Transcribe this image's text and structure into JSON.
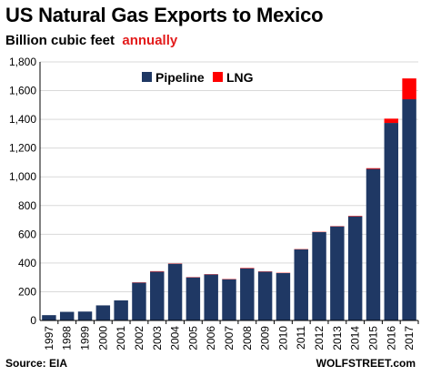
{
  "title": "US Natural Gas Exports to Mexico",
  "subtitle": "Billion cubic feet",
  "subtitle_highlight": "annually",
  "source": "Source: EIA",
  "credit": "WOLFSTREET.com",
  "colors": {
    "pipeline": "#1f3864",
    "lng": "#ff0000",
    "grid": "#d9d9d9",
    "highlight": "#e31b1b"
  },
  "chart_data": {
    "type": "bar",
    "stacked": true,
    "title": "US Natural Gas Exports to Mexico",
    "subtitle": "Billion cubic feet annually",
    "xlabel": "",
    "ylabel": "",
    "ylim": [
      0,
      1800
    ],
    "yticks": [
      0,
      200,
      400,
      600,
      800,
      1000,
      1200,
      1400,
      1600,
      1800
    ],
    "ytick_labels": [
      "0",
      "200",
      "400",
      "600",
      "800",
      "1,000",
      "1,200",
      "1,400",
      "1,600",
      "1,800"
    ],
    "grid": true,
    "legend_position": "top-center",
    "categories": [
      "1997",
      "1998",
      "1999",
      "2000",
      "2001",
      "2002",
      "2003",
      "2004",
      "2005",
      "2006",
      "2007",
      "2008",
      "2009",
      "2010",
      "2011",
      "2012",
      "2013",
      "2014",
      "2015",
      "2016",
      "2017"
    ],
    "series": [
      {
        "name": "Pipeline",
        "values": [
          37,
          60,
          62,
          105,
          140,
          263,
          340,
          395,
          300,
          320,
          287,
          363,
          340,
          330,
          495,
          615,
          655,
          725,
          1055,
          1375,
          1540
        ]
      },
      {
        "name": "LNG",
        "values": [
          0,
          0,
          0,
          0,
          0,
          2,
          3,
          2,
          2,
          2,
          2,
          3,
          2,
          2,
          2,
          2,
          2,
          3,
          5,
          30,
          145
        ]
      }
    ]
  }
}
